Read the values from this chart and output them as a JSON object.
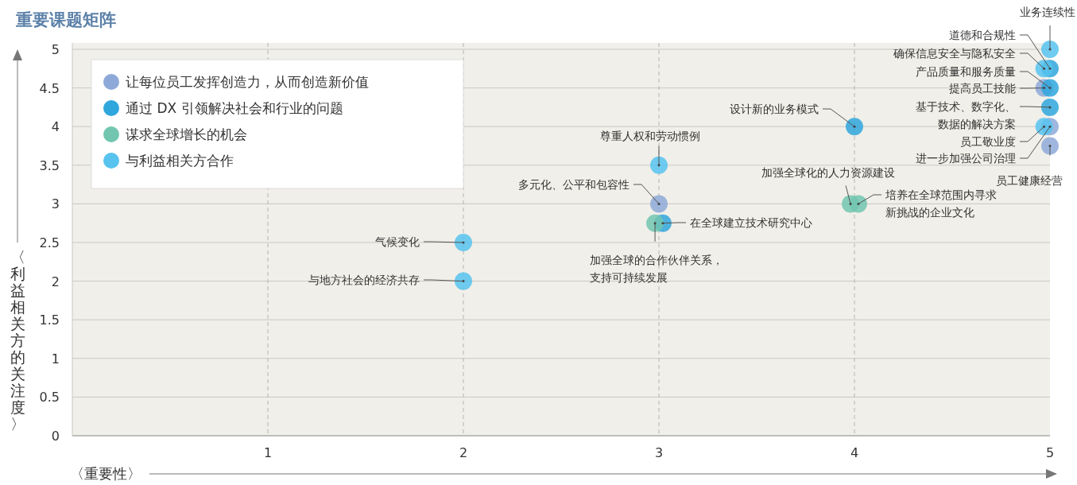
{
  "chart_data": {
    "type": "scatter",
    "title": "重要课题矩阵",
    "xlabel": "〈重要性〉",
    "ylabel": "〈利益相关方的关注度〉",
    "xlim": [
      0,
      5
    ],
    "ylim": [
      0,
      5
    ],
    "xticks": [
      {
        "value": 0,
        "label": null
      },
      1,
      2,
      3,
      4,
      5
    ],
    "yticks": [
      0,
      0.5,
      1,
      1.5,
      2,
      2.5,
      3,
      3.5,
      4,
      4.5,
      5
    ],
    "grid": true,
    "legend": "top left",
    "marker": "circle",
    "series": [
      {
        "name": "让每位员工发挥创造力，从而创造新价值",
        "color": "#8ea9d8",
        "x": [
          4.97,
          5,
          5,
          3
        ],
        "values": [
          4.5,
          4,
          3.75,
          3
        ]
      },
      {
        "name": "通过 DX 引领解决社会和行业的问题",
        "color": "#2fa6dc",
        "x": [
          5,
          5,
          5,
          4,
          3.02
        ],
        "values": [
          4.75,
          4.5,
          4.25,
          4,
          2.75
        ]
      },
      {
        "name": "谋求全球增长的机会",
        "color": "#72c6b0",
        "x": [
          2.98,
          3.98,
          4.02
        ],
        "values": [
          2.75,
          3,
          3
        ]
      },
      {
        "name": "与利益相关方合作",
        "color": "#57c3ee",
        "x": [
          5,
          4.97,
          4.97,
          3,
          2,
          2
        ],
        "values": [
          5,
          4.75,
          4,
          3.5,
          2.5,
          2
        ]
      }
    ],
    "annotations": [
      {
        "text": "业务连续性",
        "x": 5,
        "y": 5
      },
      {
        "text": "道德和合规性",
        "x": 5,
        "y": 4.75
      },
      {
        "text": "确保信息安全与隐私安全",
        "x": 4.97,
        "y": 4.75
      },
      {
        "text": "产品质量和服务质量",
        "x": 5,
        "y": 4.5
      },
      {
        "text": "提高员工技能",
        "x": 4.97,
        "y": 4.5
      },
      {
        "text": "基于技术、数字化、数据的解决方案",
        "x": 5,
        "y": 4.25
      },
      {
        "text": "员工敬业度",
        "x": 4.97,
        "y": 4
      },
      {
        "text": "进一步加强公司治理",
        "x": 5,
        "y": 4
      },
      {
        "text": "员工健康经营",
        "x": 5,
        "y": 3.75
      },
      {
        "text": "设计新的业务模式",
        "x": 4,
        "y": 4
      },
      {
        "text": "尊重人权和劳动惯例",
        "x": 3,
        "y": 3.5
      },
      {
        "text": "多元化、公平和包容性",
        "x": 3,
        "y": 3
      },
      {
        "text": "在全球建立技术研究中心",
        "x": 3.02,
        "y": 2.75
      },
      {
        "text": "加强全球的合作伙伴关系，支持可持续发展",
        "x": 2.98,
        "y": 2.75
      },
      {
        "text": "加强全球化的人力资源建设",
        "x": 3.98,
        "y": 3
      },
      {
        "text": "培养在全球范围内寻求新挑战的企业文化",
        "x": 4.02,
        "y": 3
      },
      {
        "text": "气候变化",
        "x": 2,
        "y": 2.5
      },
      {
        "text": "与地方社会的经济共存",
        "x": 2,
        "y": 2
      }
    ]
  }
}
